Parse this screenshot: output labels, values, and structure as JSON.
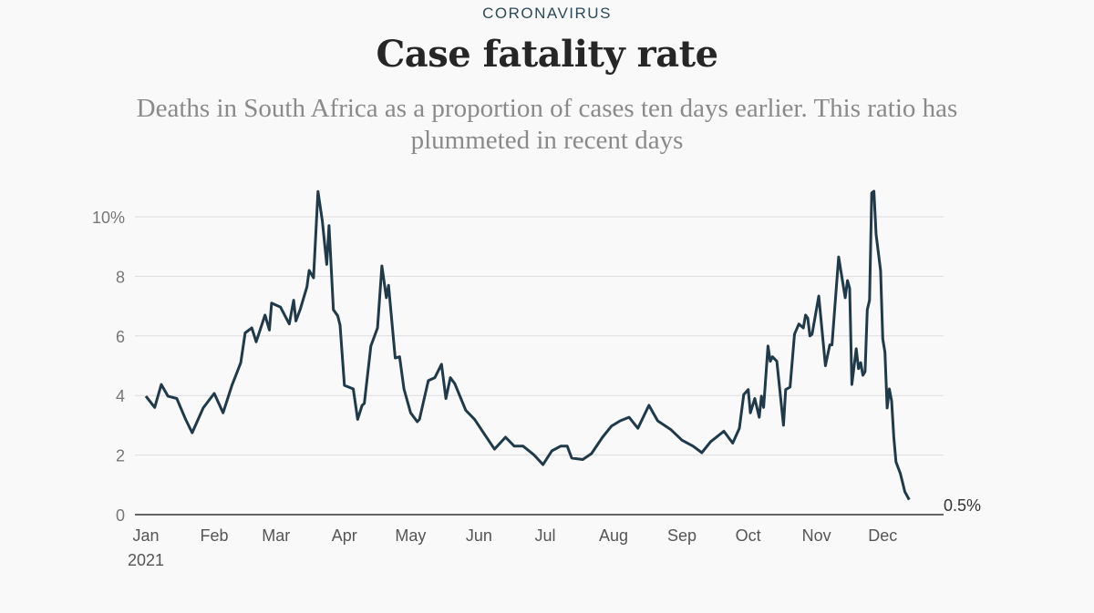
{
  "header": {
    "kicker": "CORONAVIRUS",
    "title": "Case fatality rate",
    "subtitle": "Deaths in South Africa as a proportion of cases ten days earlier. This ratio has plummeted in recent days"
  },
  "chart_data": {
    "type": "line",
    "title": "Case fatality rate",
    "xlabel": "",
    "ylabel": "",
    "x_unit": "days since 1 Jan 2021",
    "xlim": [
      -5,
      362
    ],
    "ylim": [
      0,
      10
    ],
    "grid": true,
    "line_color": "#203a4a",
    "y_ticks": [
      {
        "value": 0,
        "label": "0"
      },
      {
        "value": 2,
        "label": "2"
      },
      {
        "value": 4,
        "label": "4"
      },
      {
        "value": 6,
        "label": "6"
      },
      {
        "value": 8,
        "label": "8"
      },
      {
        "value": 10,
        "label": "10%"
      }
    ],
    "x_ticks": [
      {
        "value": 0,
        "label": "Jan",
        "sublabel": "2021"
      },
      {
        "value": 31,
        "label": "Feb"
      },
      {
        "value": 59,
        "label": "Mar"
      },
      {
        "value": 90,
        "label": "Apr"
      },
      {
        "value": 120,
        "label": "May"
      },
      {
        "value": 151,
        "label": "Jun"
      },
      {
        "value": 181,
        "label": "Jul"
      },
      {
        "value": 212,
        "label": "Aug"
      },
      {
        "value": 243,
        "label": "Sep"
      },
      {
        "value": 273,
        "label": "Oct"
      },
      {
        "value": 304,
        "label": "Nov"
      },
      {
        "value": 334,
        "label": "Dec"
      }
    ],
    "end_label": "0.5%",
    "series": [
      {
        "name": "Case fatality rate",
        "x": [
          0,
          4,
          7,
          10,
          14,
          18,
          21,
          26,
          31,
          35,
          39,
          43,
          45,
          48,
          50,
          54,
          56,
          57,
          61,
          65,
          67,
          68,
          70,
          73,
          74,
          76,
          78,
          80,
          82,
          83,
          85,
          87,
          88,
          90,
          94,
          96,
          98,
          99,
          102,
          105,
          107,
          109,
          110,
          113,
          115,
          117,
          120,
          123,
          124,
          128,
          131,
          134,
          136,
          138,
          140,
          145,
          149,
          153,
          158,
          163,
          167,
          171,
          176,
          180,
          184,
          188,
          191,
          193,
          198,
          202,
          207,
          211,
          215,
          219,
          223,
          228,
          232,
          238,
          243,
          248,
          252,
          256,
          262,
          266,
          269,
          271,
          273,
          274,
          276,
          278,
          279,
          280,
          282,
          283,
          284,
          286,
          289,
          290,
          292,
          294,
          296,
          298,
          299,
          300,
          301,
          302,
          305,
          308,
          310,
          311,
          314,
          317,
          318,
          319,
          320,
          322,
          323,
          324,
          325,
          326,
          327,
          328,
          329,
          330,
          331,
          333,
          334,
          335,
          336,
          337,
          338,
          339,
          340,
          342,
          344,
          346
        ],
        "y": [
          3.98,
          3.6,
          4.37,
          3.98,
          3.9,
          3.2,
          2.75,
          3.58,
          4.07,
          3.42,
          4.34,
          5.1,
          6.1,
          6.27,
          5.8,
          6.7,
          6.2,
          7.1,
          6.97,
          6.4,
          7.2,
          6.5,
          6.9,
          7.65,
          8.2,
          7.95,
          10.85,
          9.85,
          8.4,
          9.7,
          6.88,
          6.67,
          6.36,
          4.34,
          4.22,
          3.2,
          3.67,
          3.73,
          5.66,
          6.27,
          8.35,
          7.28,
          7.7,
          5.26,
          5.3,
          4.22,
          3.42,
          3.12,
          3.2,
          4.5,
          4.6,
          5.05,
          3.9,
          4.6,
          4.4,
          3.5,
          3.2,
          2.75,
          2.2,
          2.6,
          2.3,
          2.3,
          2.0,
          1.68,
          2.14,
          2.3,
          2.3,
          1.9,
          1.85,
          2.05,
          2.6,
          2.97,
          3.15,
          3.27,
          2.9,
          3.67,
          3.15,
          2.85,
          2.5,
          2.3,
          2.08,
          2.45,
          2.8,
          2.4,
          2.9,
          4.03,
          4.2,
          3.42,
          3.9,
          3.27,
          3.98,
          3.6,
          5.66,
          5.15,
          5.3,
          5.15,
          3.0,
          4.2,
          4.28,
          6.06,
          6.4,
          6.27,
          6.7,
          6.6,
          6.0,
          6.06,
          7.34,
          5.0,
          5.7,
          5.7,
          8.65,
          7.28,
          7.86,
          7.6,
          4.37,
          5.57,
          4.9,
          5.1,
          4.68,
          4.8,
          6.88,
          7.2,
          10.8,
          10.86,
          9.4,
          8.2,
          5.9,
          5.45,
          3.58,
          4.22,
          3.82,
          2.6,
          1.77,
          1.38,
          0.77,
          0.5
        ]
      }
    ]
  }
}
